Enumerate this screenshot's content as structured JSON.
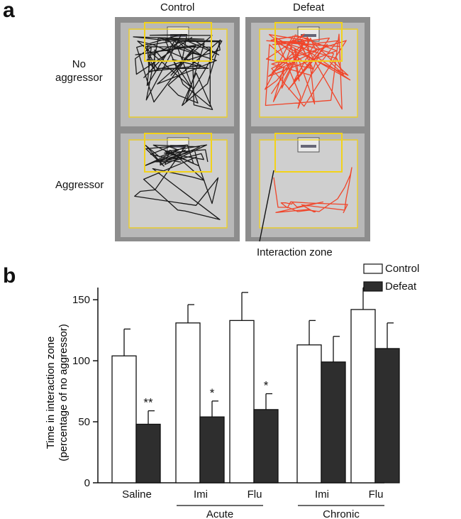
{
  "panel_a": {
    "letter": "a",
    "col_labels": [
      "Control",
      "Defeat"
    ],
    "row_labels": [
      [
        "No",
        "aggressor"
      ],
      "Aggressor"
    ],
    "annotation": "Interaction zone",
    "colors": {
      "control_track": "#1a1a1a",
      "defeat_track": "#f0452a",
      "zone_outline": "#f2d21a"
    }
  },
  "panel_b": {
    "letter": "b",
    "legend": [
      "Control",
      "Defeat"
    ],
    "colors": {
      "control": "#ffffff",
      "defeat": "#2e2e2e",
      "axis": "#111111"
    }
  },
  "chart_data": {
    "type": "bar",
    "ylabel": [
      "Time in interaction zone",
      "(percentage of no aggressor)"
    ],
    "ylim": [
      0,
      160
    ],
    "yticks": [
      "0",
      "50",
      "100",
      "150"
    ],
    "categories": [
      "Saline",
      "Imi",
      "Flu",
      "Imi",
      "Flu"
    ],
    "groups": [
      {
        "label": "Acute",
        "categories": [
          1,
          2
        ]
      },
      {
        "label": "Chronic",
        "categories": [
          3,
          4
        ]
      }
    ],
    "series": [
      {
        "name": "Control",
        "values": [
          104,
          131,
          133,
          113,
          142
        ],
        "errors": [
          22,
          15,
          23,
          20,
          18
        ]
      },
      {
        "name": "Defeat",
        "values": [
          48,
          54,
          60,
          99,
          110
        ],
        "errors": [
          11,
          13,
          13,
          21,
          21
        ]
      }
    ],
    "significance": [
      "**",
      "*",
      "*",
      "",
      ""
    ],
    "legend_position": "top-right",
    "grid": false
  }
}
